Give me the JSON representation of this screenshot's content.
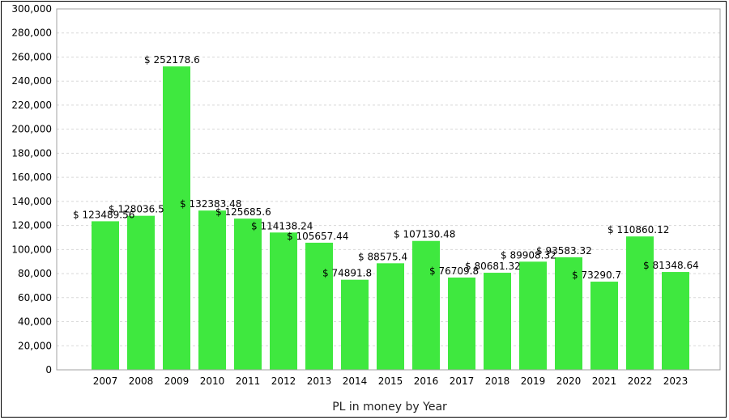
{
  "chart_data": {
    "type": "bar",
    "xlabel": "PL in money by Year",
    "ylabel": "",
    "categories": [
      "2007",
      "2008",
      "2009",
      "2010",
      "2011",
      "2012",
      "2013",
      "2014",
      "2015",
      "2016",
      "2017",
      "2018",
      "2019",
      "2020",
      "2021",
      "2022",
      "2023"
    ],
    "values": [
      123489.56,
      128036.5,
      252178.6,
      132383.48,
      125685.6,
      114138.24,
      105657.44,
      74891.8,
      88575.4,
      107130.48,
      76709.8,
      80681.32,
      89908.32,
      93583.32,
      73290.7,
      110860.12,
      81348.64
    ],
    "data_labels": [
      "$ 123489.56",
      "$ 128036.5",
      "$ 252178.6",
      "$ 132383.48",
      "$ 125685.6",
      "$ 114138.24",
      "$ 105657.44",
      "$ 74891.8",
      "$ 88575.4",
      "$ 107130.48",
      "$ 76709.8",
      "$ 80681.32",
      "$ 89908.32",
      "$ 93583.32",
      "$ 73290.7",
      "$ 110860.12",
      "$ 81348.64"
    ],
    "yticks": [
      "0",
      "20,000",
      "40,000",
      "60,000",
      "80,000",
      "100,000",
      "120,000",
      "140,000",
      "160,000",
      "180,000",
      "200,000",
      "220,000",
      "240,000",
      "260,000",
      "280,000",
      "300,000"
    ],
    "ylim": [
      0,
      300000
    ],
    "grid": true,
    "bar_color": "#3fe83f",
    "grid_color": "#d8d8d8"
  }
}
